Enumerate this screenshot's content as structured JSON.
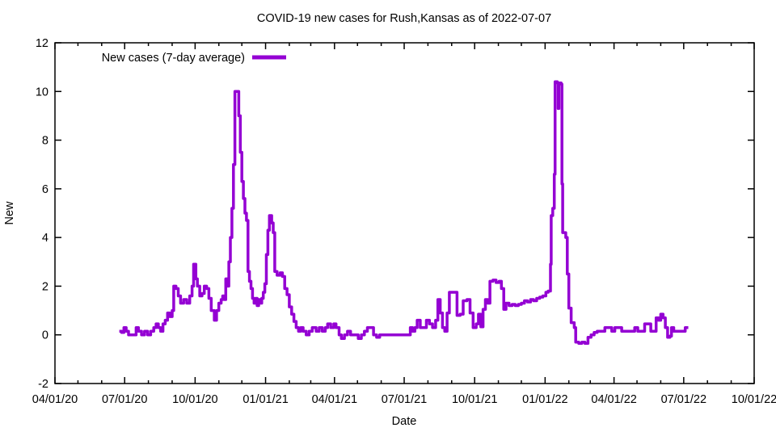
{
  "chart_data": {
    "type": "line",
    "title": "COVID-19 new cases for Rush,Kansas as of 2022-07-07",
    "xlabel": "Date",
    "ylabel": "New",
    "legend": {
      "label": "New cases (7-day average)",
      "position": "top-left-inside"
    },
    "line_color": "#9400d3",
    "border_color": "#000000",
    "grid": false,
    "x_range": [
      "2020-04-01",
      "2022-10-01"
    ],
    "ylim": [
      -2,
      12
    ],
    "y_ticks": [
      -2,
      0,
      2,
      4,
      6,
      8,
      10,
      12
    ],
    "x_ticks": [
      {
        "date": "2020-04-01",
        "label": "04/01/20"
      },
      {
        "date": "2020-07-01",
        "label": "07/01/20"
      },
      {
        "date": "2020-10-01",
        "label": "10/01/20"
      },
      {
        "date": "2021-01-01",
        "label": "01/01/21"
      },
      {
        "date": "2021-04-01",
        "label": "04/01/21"
      },
      {
        "date": "2021-07-01",
        "label": "07/01/21"
      },
      {
        "date": "2021-10-01",
        "label": "10/01/21"
      },
      {
        "date": "2022-01-01",
        "label": "01/01/22"
      },
      {
        "date": "2022-04-01",
        "label": "04/01/22"
      },
      {
        "date": "2022-07-01",
        "label": "07/01/22"
      },
      {
        "date": "2022-10-01",
        "label": "10/01/22"
      }
    ],
    "x_minor_tick_interval": "month",
    "points": [
      [
        "2020-06-24",
        0.15
      ],
      [
        "2020-06-27",
        0.1
      ],
      [
        "2020-06-30",
        0.3
      ],
      [
        "2020-07-03",
        0.15
      ],
      [
        "2020-07-06",
        0
      ],
      [
        "2020-07-12",
        0
      ],
      [
        "2020-07-16",
        0.3
      ],
      [
        "2020-07-19",
        0.15
      ],
      [
        "2020-07-23",
        0
      ],
      [
        "2020-07-27",
        0.15
      ],
      [
        "2020-07-31",
        0
      ],
      [
        "2020-08-04",
        0.15
      ],
      [
        "2020-08-08",
        0.3
      ],
      [
        "2020-08-11",
        0.45
      ],
      [
        "2020-08-14",
        0.3
      ],
      [
        "2020-08-17",
        0.15
      ],
      [
        "2020-08-20",
        0.45
      ],
      [
        "2020-08-23",
        0.6
      ],
      [
        "2020-08-26",
        0.9
      ],
      [
        "2020-08-29",
        0.75
      ],
      [
        "2020-09-01",
        1.0
      ],
      [
        "2020-09-03",
        2.0
      ],
      [
        "2020-09-06",
        1.9
      ],
      [
        "2020-09-09",
        1.6
      ],
      [
        "2020-09-12",
        1.3
      ],
      [
        "2020-09-16",
        1.45
      ],
      [
        "2020-09-20",
        1.3
      ],
      [
        "2020-09-24",
        1.6
      ],
      [
        "2020-09-27",
        2.0
      ],
      [
        "2020-09-29",
        2.9
      ],
      [
        "2020-10-02",
        2.3
      ],
      [
        "2020-10-04",
        2.0
      ],
      [
        "2020-10-07",
        1.6
      ],
      [
        "2020-10-10",
        1.7
      ],
      [
        "2020-10-13",
        2.0
      ],
      [
        "2020-10-16",
        1.9
      ],
      [
        "2020-10-19",
        1.5
      ],
      [
        "2020-10-22",
        1.0
      ],
      [
        "2020-10-26",
        0.6
      ],
      [
        "2020-10-29",
        1.0
      ],
      [
        "2020-11-01",
        1.3
      ],
      [
        "2020-11-04",
        1.45
      ],
      [
        "2020-11-06",
        1.6
      ],
      [
        "2020-11-08",
        1.45
      ],
      [
        "2020-11-10",
        2.3
      ],
      [
        "2020-11-12",
        2.0
      ],
      [
        "2020-11-14",
        3.0
      ],
      [
        "2020-11-16",
        4.0
      ],
      [
        "2020-11-18",
        5.2
      ],
      [
        "2020-11-20",
        7.0
      ],
      [
        "2020-11-22",
        10.0
      ],
      [
        "2020-11-25",
        10.0
      ],
      [
        "2020-11-27",
        9.0
      ],
      [
        "2020-11-29",
        7.5
      ],
      [
        "2020-12-01",
        6.3
      ],
      [
        "2020-12-03",
        5.6
      ],
      [
        "2020-12-05",
        5.0
      ],
      [
        "2020-12-07",
        4.7
      ],
      [
        "2020-12-09",
        2.6
      ],
      [
        "2020-12-11",
        2.2
      ],
      [
        "2020-12-13",
        1.9
      ],
      [
        "2020-12-15",
        1.5
      ],
      [
        "2020-12-17",
        1.3
      ],
      [
        "2020-12-19",
        1.5
      ],
      [
        "2020-12-21",
        1.2
      ],
      [
        "2020-12-23",
        1.45
      ],
      [
        "2020-12-25",
        1.3
      ],
      [
        "2020-12-27",
        1.5
      ],
      [
        "2020-12-29",
        1.75
      ],
      [
        "2020-12-31",
        2.1
      ],
      [
        "2021-01-02",
        3.3
      ],
      [
        "2021-01-04",
        4.3
      ],
      [
        "2021-01-06",
        4.9
      ],
      [
        "2021-01-09",
        4.6
      ],
      [
        "2021-01-11",
        4.2
      ],
      [
        "2021-01-13",
        2.6
      ],
      [
        "2021-01-16",
        2.45
      ],
      [
        "2021-01-20",
        2.55
      ],
      [
        "2021-01-23",
        2.4
      ],
      [
        "2021-01-26",
        1.9
      ],
      [
        "2021-01-29",
        1.65
      ],
      [
        "2021-02-01",
        1.15
      ],
      [
        "2021-02-04",
        0.85
      ],
      [
        "2021-02-07",
        0.55
      ],
      [
        "2021-02-10",
        0.3
      ],
      [
        "2021-02-13",
        0.15
      ],
      [
        "2021-02-16",
        0.3
      ],
      [
        "2021-02-19",
        0.15
      ],
      [
        "2021-02-23",
        0
      ],
      [
        "2021-02-27",
        0.15
      ],
      [
        "2021-03-03",
        0.3
      ],
      [
        "2021-03-08",
        0.15
      ],
      [
        "2021-03-12",
        0.3
      ],
      [
        "2021-03-16",
        0.15
      ],
      [
        "2021-03-20",
        0.3
      ],
      [
        "2021-03-23",
        0.45
      ],
      [
        "2021-03-27",
        0.3
      ],
      [
        "2021-03-31",
        0.45
      ],
      [
        "2021-04-03",
        0.3
      ],
      [
        "2021-04-07",
        0
      ],
      [
        "2021-04-10",
        -0.15
      ],
      [
        "2021-04-14",
        0
      ],
      [
        "2021-04-18",
        0.15
      ],
      [
        "2021-04-22",
        0
      ],
      [
        "2021-04-28",
        0
      ],
      [
        "2021-05-02",
        -0.15
      ],
      [
        "2021-05-06",
        0
      ],
      [
        "2021-05-10",
        0.15
      ],
      [
        "2021-05-14",
        0.3
      ],
      [
        "2021-05-18",
        0.3
      ],
      [
        "2021-05-22",
        0
      ],
      [
        "2021-05-26",
        -0.1
      ],
      [
        "2021-05-30",
        0
      ],
      [
        "2021-06-15",
        0
      ],
      [
        "2021-07-05",
        0
      ],
      [
        "2021-07-09",
        0.3
      ],
      [
        "2021-07-12",
        0.15
      ],
      [
        "2021-07-15",
        0.3
      ],
      [
        "2021-07-18",
        0.6
      ],
      [
        "2021-07-22",
        0.3
      ],
      [
        "2021-07-26",
        0.3
      ],
      [
        "2021-07-30",
        0.6
      ],
      [
        "2021-08-03",
        0.45
      ],
      [
        "2021-08-07",
        0.3
      ],
      [
        "2021-08-11",
        0.6
      ],
      [
        "2021-08-14",
        1.45
      ],
      [
        "2021-08-17",
        0.9
      ],
      [
        "2021-08-20",
        0.3
      ],
      [
        "2021-08-23",
        0.15
      ],
      [
        "2021-08-26",
        0.9
      ],
      [
        "2021-08-29",
        1.75
      ],
      [
        "2021-09-04",
        1.75
      ],
      [
        "2021-09-08",
        0.8
      ],
      [
        "2021-09-12",
        0.85
      ],
      [
        "2021-09-16",
        1.4
      ],
      [
        "2021-09-21",
        1.45
      ],
      [
        "2021-09-25",
        0.9
      ],
      [
        "2021-09-29",
        0.3
      ],
      [
        "2021-10-03",
        0.45
      ],
      [
        "2021-10-06",
        0.85
      ],
      [
        "2021-10-09",
        0.33
      ],
      [
        "2021-10-12",
        1.05
      ],
      [
        "2021-10-15",
        1.45
      ],
      [
        "2021-10-18",
        1.3
      ],
      [
        "2021-10-21",
        2.2
      ],
      [
        "2021-10-25",
        2.25
      ],
      [
        "2021-10-29",
        2.15
      ],
      [
        "2021-11-02",
        2.2
      ],
      [
        "2021-11-05",
        1.9
      ],
      [
        "2021-11-08",
        1.05
      ],
      [
        "2021-11-11",
        1.3
      ],
      [
        "2021-11-15",
        1.2
      ],
      [
        "2021-11-19",
        1.25
      ],
      [
        "2021-11-23",
        1.2
      ],
      [
        "2021-11-27",
        1.25
      ],
      [
        "2021-12-01",
        1.3
      ],
      [
        "2021-12-05",
        1.4
      ],
      [
        "2021-12-09",
        1.35
      ],
      [
        "2021-12-13",
        1.45
      ],
      [
        "2021-12-17",
        1.4
      ],
      [
        "2021-12-21",
        1.5
      ],
      [
        "2021-12-25",
        1.55
      ],
      [
        "2021-12-29",
        1.6
      ],
      [
        "2022-01-02",
        1.75
      ],
      [
        "2022-01-05",
        1.8
      ],
      [
        "2022-01-08",
        2.9
      ],
      [
        "2022-01-09",
        4.9
      ],
      [
        "2022-01-11",
        5.2
      ],
      [
        "2022-01-13",
        6.6
      ],
      [
        "2022-01-14",
        10.4
      ],
      [
        "2022-01-17",
        10.35
      ],
      [
        "2022-01-18",
        9.3
      ],
      [
        "2022-01-19",
        10.35
      ],
      [
        "2022-01-22",
        10.3
      ],
      [
        "2022-01-23",
        6.2
      ],
      [
        "2022-01-24",
        4.2
      ],
      [
        "2022-01-28",
        4.0
      ],
      [
        "2022-01-30",
        2.5
      ],
      [
        "2022-02-01",
        1.1
      ],
      [
        "2022-02-04",
        0.5
      ],
      [
        "2022-02-08",
        0.3
      ],
      [
        "2022-02-10",
        -0.3
      ],
      [
        "2022-02-14",
        -0.35
      ],
      [
        "2022-02-18",
        -0.3
      ],
      [
        "2022-02-22",
        -0.35
      ],
      [
        "2022-02-26",
        -0.1
      ],
      [
        "2022-03-02",
        0
      ],
      [
        "2022-03-06",
        0.1
      ],
      [
        "2022-03-10",
        0.15
      ],
      [
        "2022-03-16",
        0.15
      ],
      [
        "2022-03-20",
        0.3
      ],
      [
        "2022-03-25",
        0.3
      ],
      [
        "2022-03-29",
        0.15
      ],
      [
        "2022-04-02",
        0.3
      ],
      [
        "2022-04-07",
        0.3
      ],
      [
        "2022-04-11",
        0.15
      ],
      [
        "2022-04-16",
        0.15
      ],
      [
        "2022-04-20",
        0.15
      ],
      [
        "2022-04-24",
        0.15
      ],
      [
        "2022-04-28",
        0.3
      ],
      [
        "2022-05-02",
        0.15
      ],
      [
        "2022-05-07",
        0.15
      ],
      [
        "2022-05-11",
        0.45
      ],
      [
        "2022-05-15",
        0.45
      ],
      [
        "2022-05-19",
        0.15
      ],
      [
        "2022-05-23",
        0.15
      ],
      [
        "2022-05-26",
        0.7
      ],
      [
        "2022-05-29",
        0.6
      ],
      [
        "2022-06-01",
        0.85
      ],
      [
        "2022-06-04",
        0.7
      ],
      [
        "2022-06-07",
        0.3
      ],
      [
        "2022-06-10",
        -0.1
      ],
      [
        "2022-06-13",
        -0.05
      ],
      [
        "2022-06-15",
        0.3
      ],
      [
        "2022-06-18",
        0.15
      ],
      [
        "2022-06-22",
        0.15
      ],
      [
        "2022-06-26",
        0.15
      ],
      [
        "2022-06-30",
        0.15
      ],
      [
        "2022-07-03",
        0.3
      ],
      [
        "2022-07-07",
        0.3
      ]
    ]
  }
}
